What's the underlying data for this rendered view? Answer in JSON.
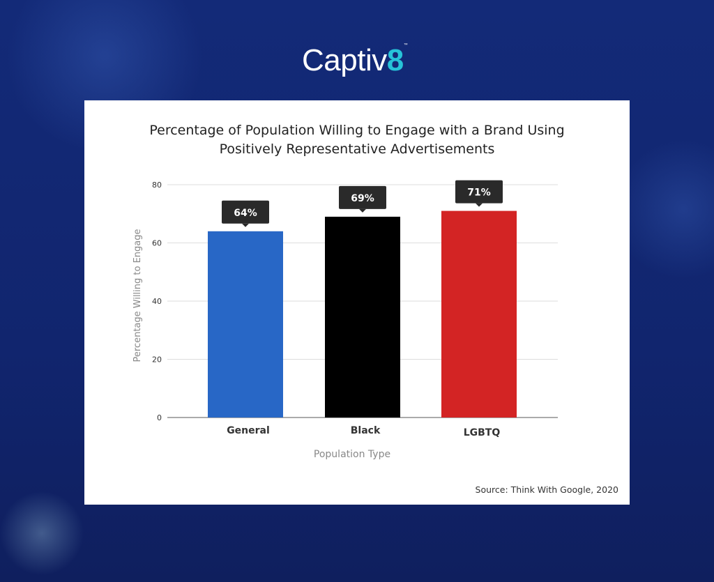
{
  "logo": {
    "text": "Captiv",
    "accent": "8",
    "tm": "™"
  },
  "chart_data": {
    "type": "bar",
    "title": "Percentage of Population Willing to Engage with a Brand Using",
    "title_line2": "Positively Representative Advertisements",
    "categories": [
      "General",
      "Black",
      "LGBTQ"
    ],
    "values": [
      64,
      69,
      71
    ],
    "data_labels": [
      "64%",
      "69%",
      "71%"
    ],
    "colors": [
      "#2867c6",
      "#000000",
      "#d32424"
    ],
    "xlabel": "Population Type",
    "ylabel": "Percentage Willing to Engage",
    "ylim": [
      0,
      80
    ],
    "yticks": [
      0,
      20,
      40,
      60,
      80
    ],
    "grid": true,
    "source": "Source: Think With Google, 2020"
  }
}
